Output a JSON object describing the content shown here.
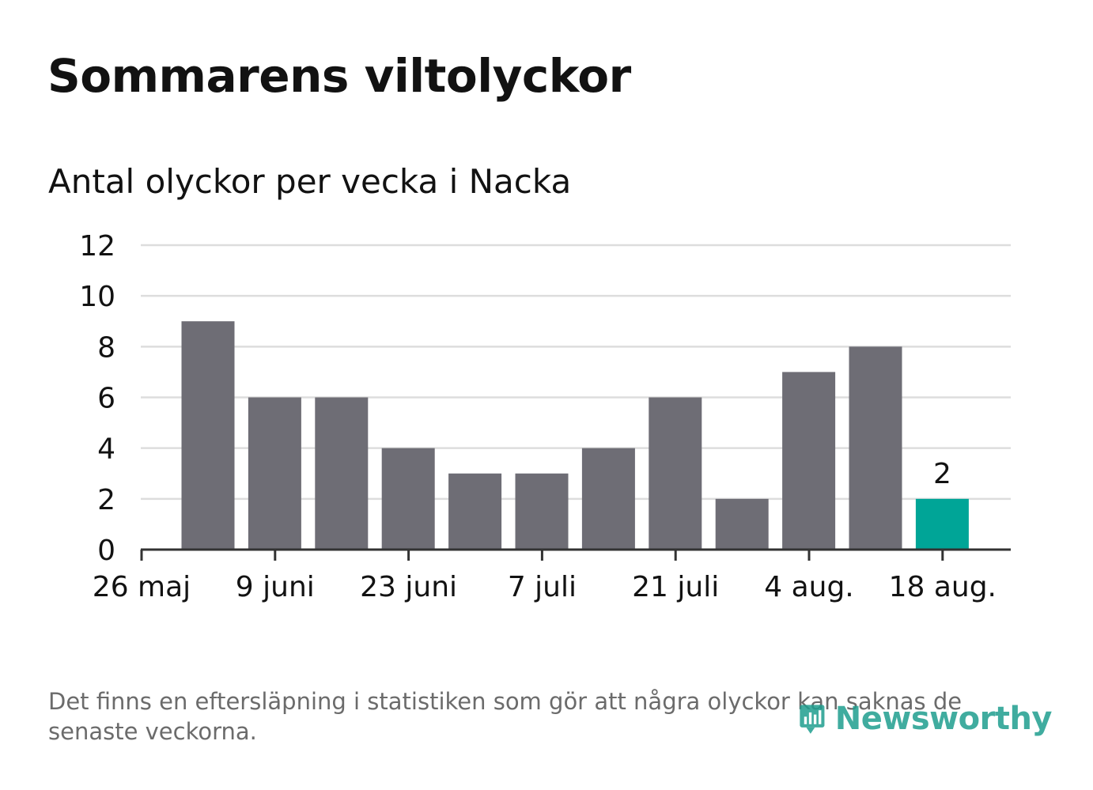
{
  "title": "Sommarens viltolyckor",
  "subtitle": "Antal olyckor per vecka i Nacka",
  "footnote": "Det finns en eftersläpning i statistiken som gör att några olyckor kan saknas de senaste veckorna.",
  "logo": {
    "text": "Newsworthy",
    "icon": "newsworthy-logo-icon"
  },
  "colors": {
    "bar": "#6e6d75",
    "highlight": "#00a597",
    "grid": "#dddddd",
    "axis": "#333333",
    "text": "#121212",
    "footnote": "#6b6b6b",
    "logo": "#1f9e8f"
  },
  "chart_data": {
    "type": "bar",
    "x_tick_labels": [
      "26 maj",
      "9 juni",
      "23 juni",
      "7 juli",
      "21 juli",
      "4 aug.",
      "18 aug."
    ],
    "y_ticks": [
      0,
      2,
      4,
      6,
      8,
      10,
      12
    ],
    "ylim": [
      0,
      12
    ],
    "values": [
      9,
      6,
      6,
      4,
      3,
      3,
      4,
      6,
      2,
      7,
      8,
      2
    ],
    "highlight_index": 11,
    "annotations": [
      {
        "index": 11,
        "text": "2"
      }
    ],
    "grid": true
  }
}
